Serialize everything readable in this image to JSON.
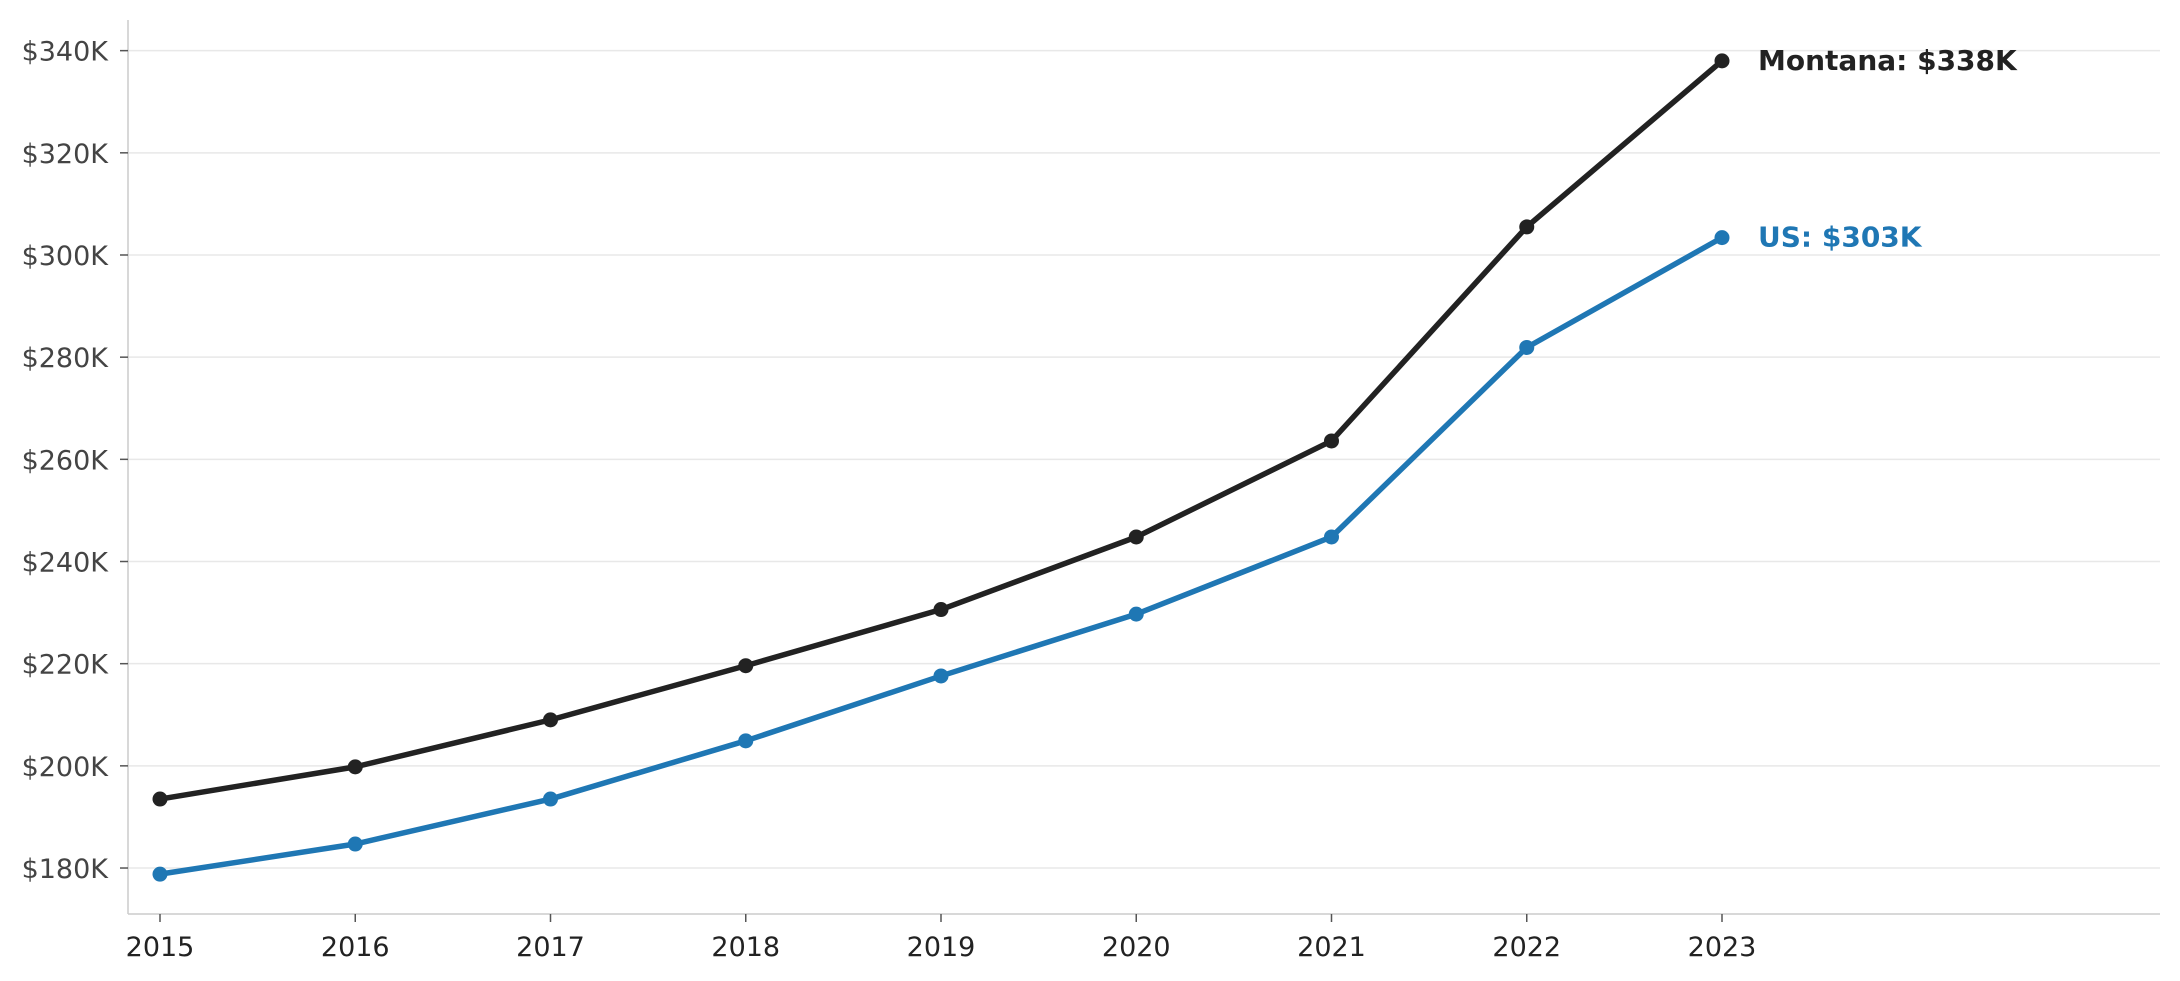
{
  "chart_data": {
    "type": "line",
    "title": "",
    "xlabel": "",
    "ylabel": "",
    "x": [
      2015,
      2016,
      2017,
      2018,
      2019,
      2020,
      2021,
      2022,
      2023
    ],
    "x_tick_labels": [
      "2015",
      "2016",
      "2017",
      "2018",
      "2019",
      "2020",
      "2021",
      "2022",
      "2023"
    ],
    "ylim": [
      171000,
      346000
    ],
    "y_ticks": [
      180000,
      200000,
      220000,
      240000,
      260000,
      280000,
      300000,
      320000,
      340000
    ],
    "y_tick_labels": [
      "$180K",
      "$200K",
      "$220K",
      "$240K",
      "$260K",
      "$280K",
      "$300K",
      "$320K",
      "$340K"
    ],
    "grid": "horizontal",
    "series": [
      {
        "name": "Montana",
        "color": "#222222",
        "values": [
          193500,
          199800,
          209000,
          219600,
          230600,
          244800,
          263600,
          305500,
          338000
        ],
        "end_label": "Montana: $338K"
      },
      {
        "name": "US",
        "color": "#1f77b4",
        "values": [
          178800,
          184700,
          193500,
          204900,
          217600,
          229700,
          244800,
          281900,
          303400
        ],
        "end_label": "US: $303K"
      }
    ]
  }
}
